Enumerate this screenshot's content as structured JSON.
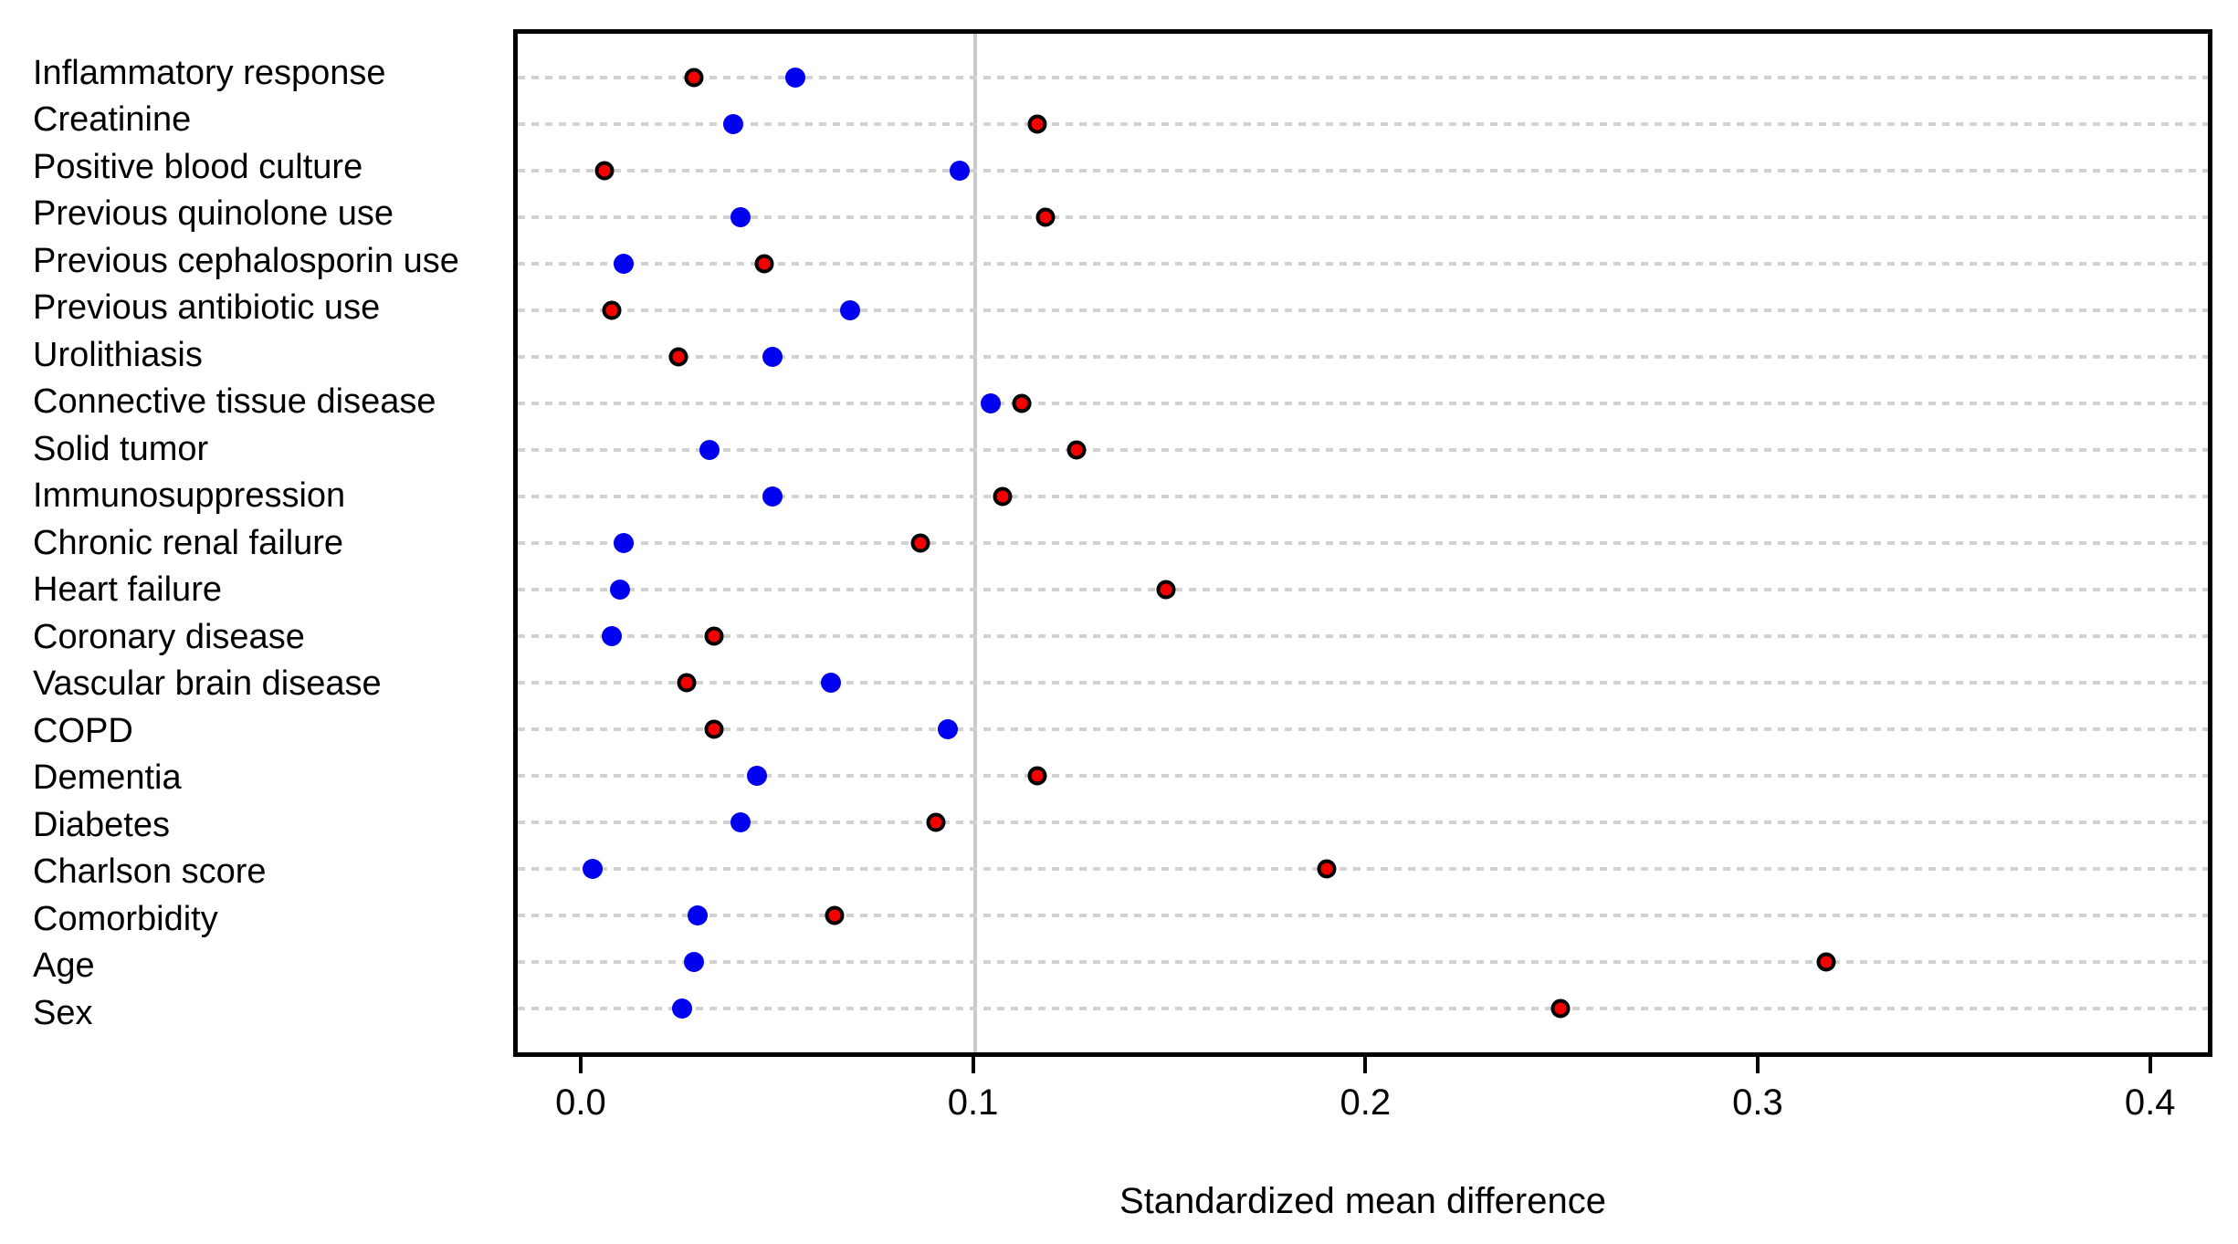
{
  "chart_data": {
    "type": "scatter",
    "title": "",
    "xlabel": "Standardized mean difference",
    "ylabel": "",
    "legend": "none",
    "grid": "horizontal dashed line per category",
    "reference_line_x": 0.1,
    "xlim": [
      -0.0172,
      0.4159
    ],
    "x_ticks": [
      0.0,
      0.1,
      0.2,
      0.3,
      0.4
    ],
    "x_tick_labels": [
      "0.0",
      "0.1",
      "0.2",
      "0.3",
      "0.4"
    ],
    "categories": [
      "Inflammatory response",
      "Creatinine",
      "Positive blood culture",
      "Previous quinolone use",
      "Previous cephalosporin use",
      "Previous antibiotic use",
      "Urolithiasis",
      "Connective tissue disease",
      "Solid tumor",
      "Immunosuppression",
      "Chronic renal failure",
      "Heart failure",
      "Coronary disease",
      "Vascular brain disease",
      "COPD",
      "Dementia",
      "Diabetes",
      "Charlson score",
      "Comorbidity",
      "Age",
      "Sex"
    ],
    "series": [
      {
        "name": "blue",
        "marker": "filled circle",
        "color": "#0000f0",
        "values": [
          0.054,
          0.038,
          0.096,
          0.04,
          0.01,
          0.068,
          0.048,
          0.104,
          0.032,
          0.048,
          0.01,
          0.009,
          0.007,
          0.063,
          0.093,
          0.044,
          0.04,
          0.002,
          0.029,
          0.028,
          0.025
        ]
      },
      {
        "name": "red",
        "marker": "circle with black ring",
        "color": "#f50000",
        "values": [
          0.028,
          0.116,
          0.005,
          0.118,
          0.046,
          0.007,
          0.024,
          0.112,
          0.126,
          0.107,
          0.086,
          0.149,
          0.033,
          0.026,
          0.033,
          0.116,
          0.09,
          0.19,
          0.064,
          0.318,
          0.25
        ]
      }
    ],
    "colors": {
      "gridline": "#d2d2d2",
      "reference_line": "#c9c9c9",
      "panel_border": "#000000"
    }
  }
}
